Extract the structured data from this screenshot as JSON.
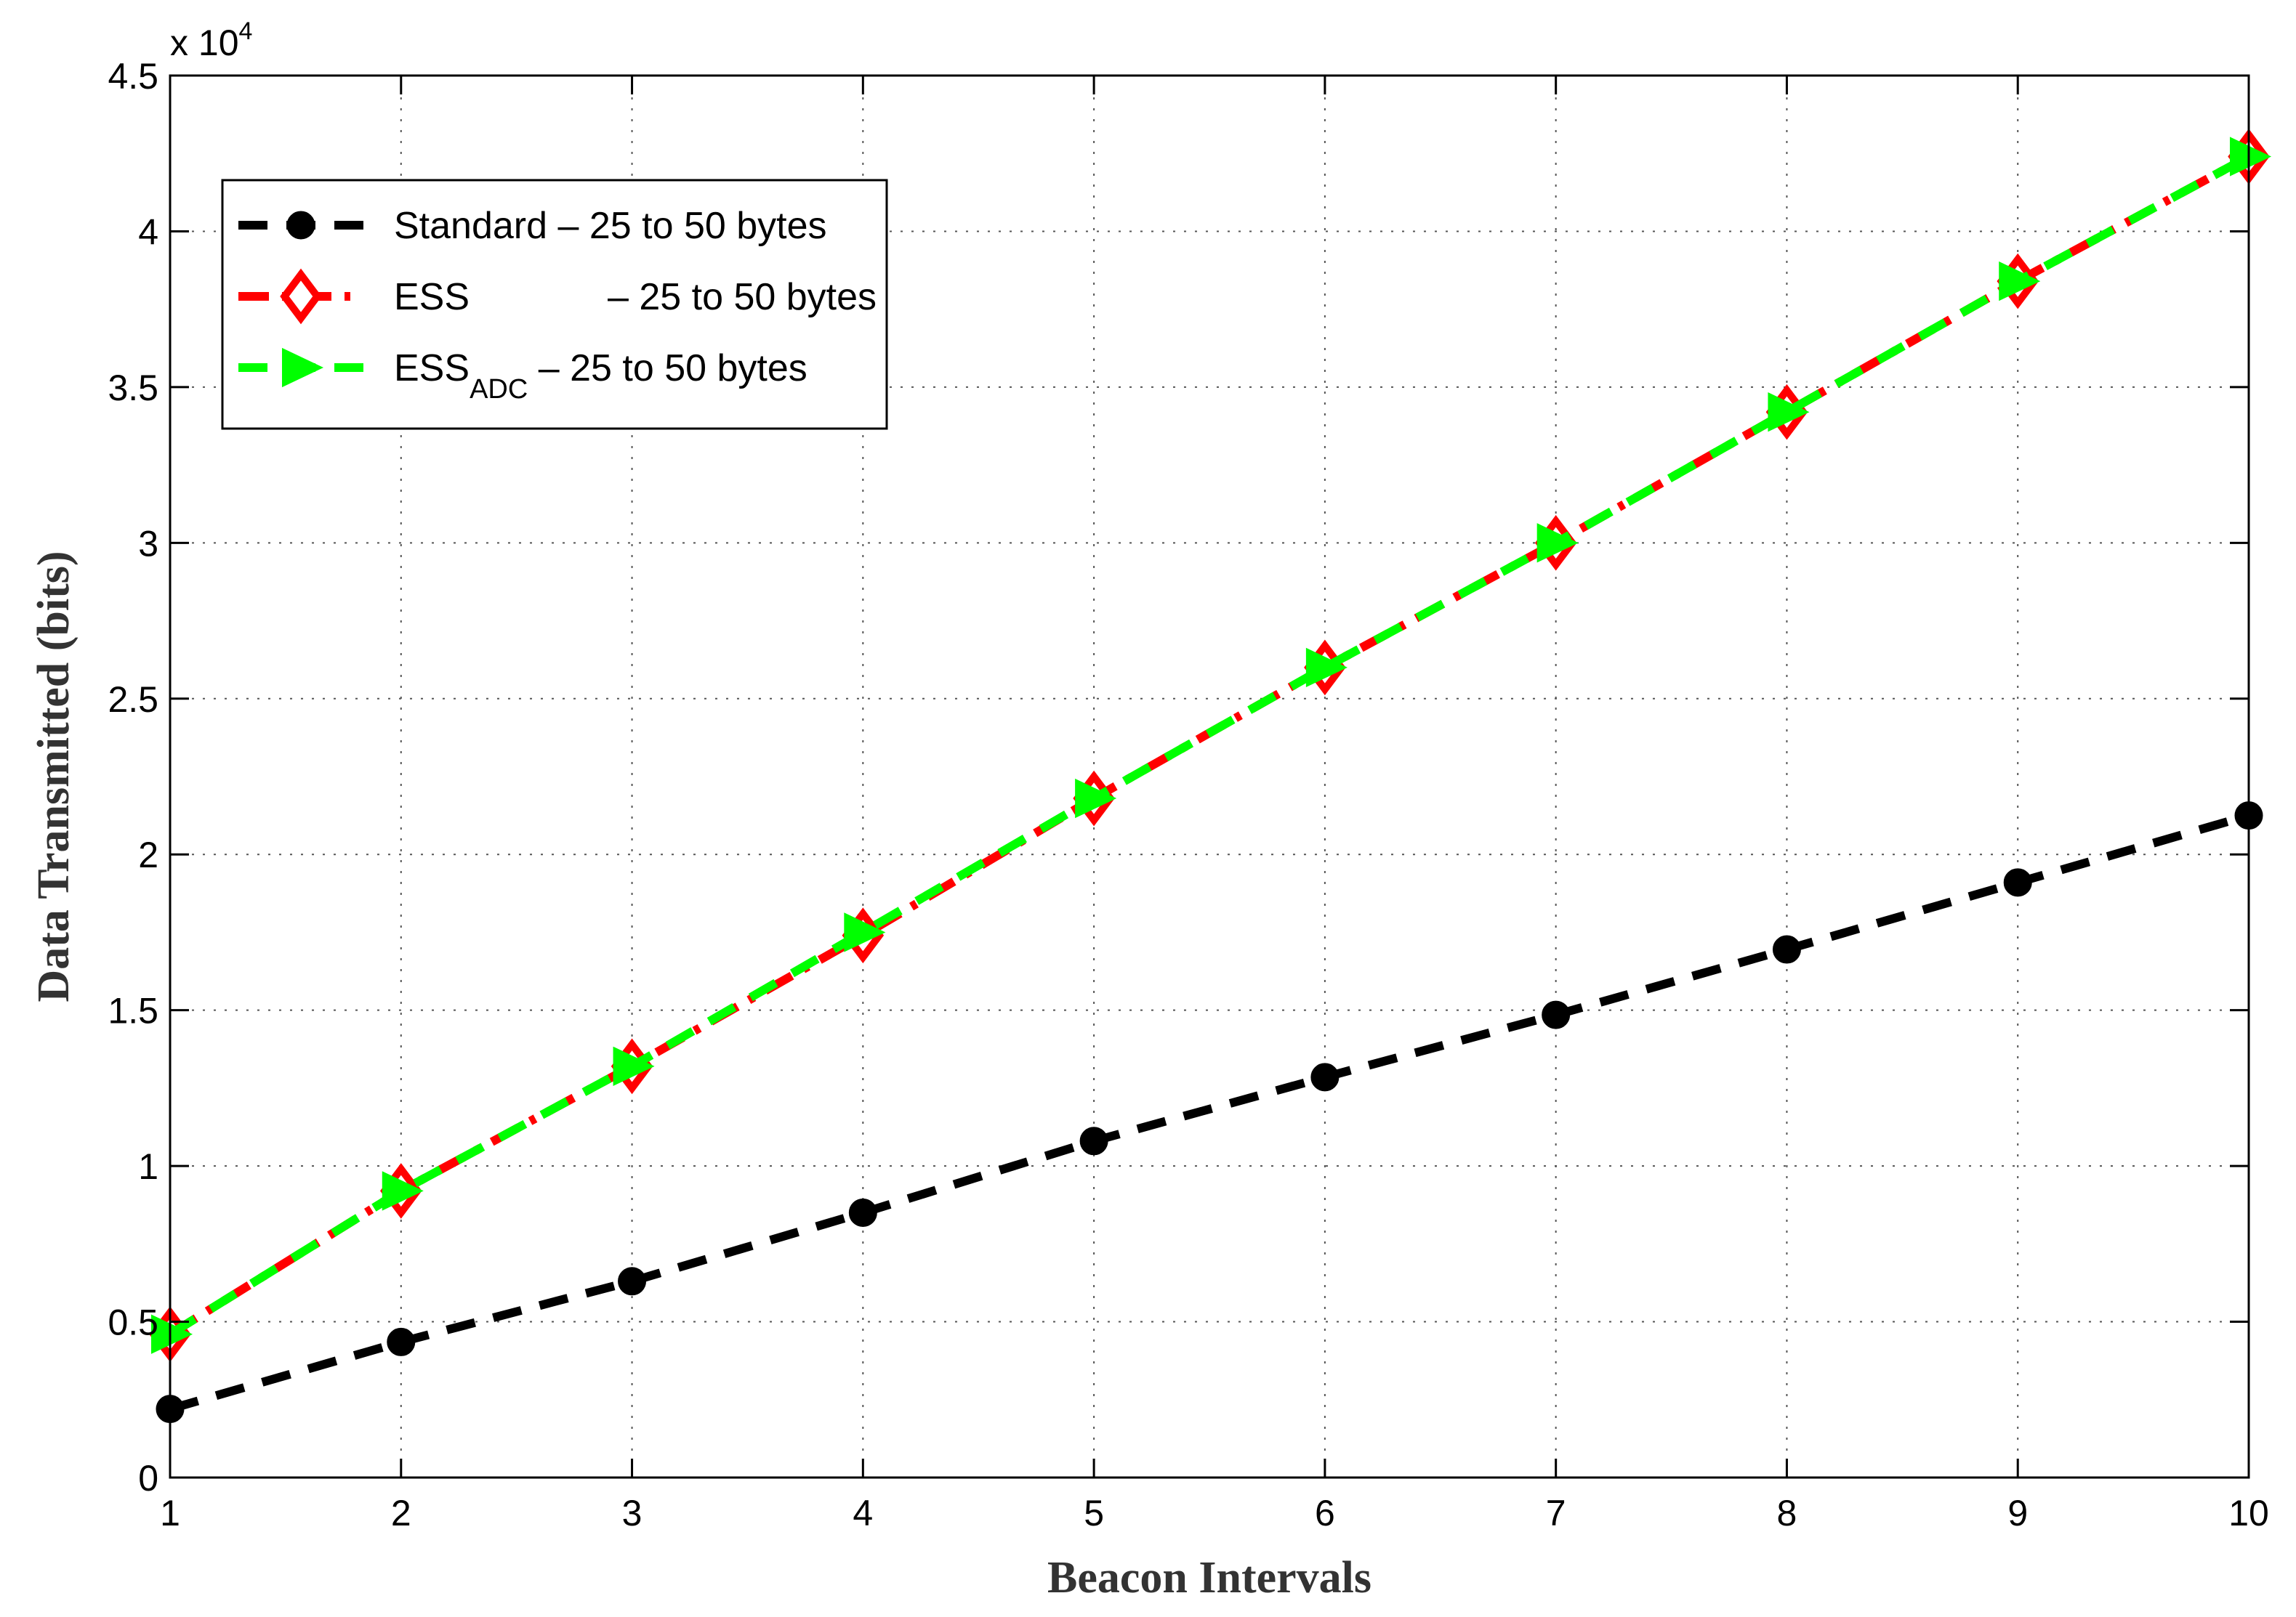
{
  "chart_data": {
    "type": "line",
    "xlabel": "Beacon Intervals",
    "ylabel": "Data Transmitted (bits)",
    "exponent_label": {
      "base": "x 10",
      "power": "4"
    },
    "x": [
      1,
      2,
      3,
      4,
      5,
      6,
      7,
      8,
      9,
      10
    ],
    "xlim": [
      1,
      10
    ],
    "ylim": [
      0,
      45000
    ],
    "x_ticks": [
      "1",
      "2",
      "3",
      "4",
      "5",
      "6",
      "7",
      "8",
      "9",
      "10"
    ],
    "y_ticks": [
      {
        "value": 0,
        "label": "0"
      },
      {
        "value": 5000,
        "label": "0.5"
      },
      {
        "value": 10000,
        "label": "1"
      },
      {
        "value": 15000,
        "label": "1.5"
      },
      {
        "value": 20000,
        "label": "2"
      },
      {
        "value": 25000,
        "label": "2.5"
      },
      {
        "value": 30000,
        "label": "3"
      },
      {
        "value": 35000,
        "label": "3.5"
      },
      {
        "value": 40000,
        "label": "4"
      },
      {
        "value": 45000,
        "label": "4.5"
      }
    ],
    "grid": true,
    "legend_position": "top-left",
    "series": [
      {
        "name": "Standard – 25 to 50 bytes",
        "name_main": "Standard",
        "name_sub": "",
        "name_rest": " – 25 to 50 bytes",
        "color": "#000000",
        "marker": "circle",
        "line_style": "dashed",
        "values": [
          2200,
          4350,
          6300,
          8500,
          10800,
          12850,
          14850,
          16950,
          19100,
          21250
        ]
      },
      {
        "name": "ESS – 25 to 50 bytes",
        "name_main": "ESS",
        "name_sub": "",
        "name_rest": "– 25 to 50 bytes",
        "color": "#ff0000",
        "marker": "diamond",
        "line_style": "dashdot",
        "values": [
          4600,
          9200,
          13200,
          17400,
          21800,
          26000,
          30000,
          34200,
          38400,
          42400
        ]
      },
      {
        "name": "ESSADC – 25 to 50 bytes",
        "name_main": "ESS",
        "name_sub": "ADC",
        "name_rest": " – 25 to 50 bytes",
        "color": "#00ff00",
        "marker": "triangle-right",
        "line_style": "dashed",
        "values": [
          4600,
          9200,
          13200,
          17500,
          21800,
          26000,
          30000,
          34200,
          38400,
          42400
        ]
      }
    ]
  }
}
